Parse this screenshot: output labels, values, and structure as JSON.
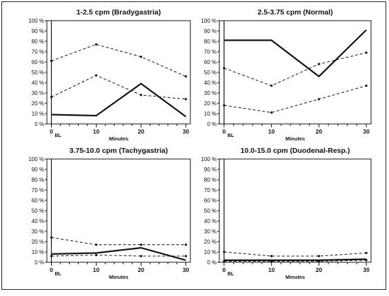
{
  "chart_data": [
    {
      "type": "line",
      "title": "1-2.5 cpm (Bradygastria)",
      "xlabel": "Minutes",
      "ylabel": "",
      "x": [
        0,
        10,
        20,
        30
      ],
      "x_tick_labels": [
        "0",
        "10",
        "20",
        "30"
      ],
      "x_tick_sub": "BL",
      "xlim": [
        -1,
        31
      ],
      "ylim": [
        0,
        100
      ],
      "y_ticks": [
        0,
        10,
        20,
        30,
        40,
        50,
        60,
        70,
        80,
        90,
        100
      ],
      "y_tick_labels": [
        "0 %",
        "10 %",
        "20 %",
        "30 %",
        "40 %",
        "50 %",
        "60 %",
        "70 %",
        "80 %",
        "90 %",
        "100 %"
      ],
      "grid": false,
      "series": [
        {
          "style": "solid",
          "values": [
            9,
            8,
            39,
            7
          ]
        },
        {
          "style": "dashed",
          "values": [
            61,
            77,
            65,
            46
          ]
        },
        {
          "style": "dashed",
          "values": [
            26,
            47,
            28,
            24
          ]
        }
      ]
    },
    {
      "type": "line",
      "title": "2.5-3.75 cpm (Normal)",
      "xlabel": "Minutes",
      "ylabel": "",
      "x": [
        0,
        10,
        20,
        30
      ],
      "x_tick_labels": [
        "0",
        "10",
        "20",
        "30"
      ],
      "x_tick_sub": "BL",
      "xlim": [
        -1,
        31
      ],
      "ylim": [
        0,
        100
      ],
      "y_ticks": [
        0,
        10,
        20,
        30,
        40,
        50,
        60,
        70,
        80,
        90,
        100
      ],
      "y_tick_labels": [
        "0 %",
        "10 %",
        "20 %",
        "30 %",
        "40 %",
        "50 %",
        "60 %",
        "70 %",
        "80 %",
        "90 %",
        "100 %"
      ],
      "grid": false,
      "series": [
        {
          "style": "solid",
          "values": [
            81,
            81,
            46,
            91
          ]
        },
        {
          "style": "dashed",
          "values": [
            54,
            37,
            58,
            69
          ]
        },
        {
          "style": "dashed",
          "values": [
            18,
            11,
            24,
            37
          ]
        }
      ]
    },
    {
      "type": "line",
      "title": "3.75-10.0 cpm (Tachygastria)",
      "xlabel": "Minutes",
      "ylabel": "",
      "x": [
        0,
        10,
        20,
        30
      ],
      "x_tick_labels": [
        "0",
        "10",
        "20",
        "30"
      ],
      "x_tick_sub": "BL",
      "xlim": [
        -1,
        31
      ],
      "ylim": [
        0,
        100
      ],
      "y_ticks": [
        0,
        10,
        20,
        30,
        40,
        50,
        60,
        70,
        80,
        90,
        100
      ],
      "y_tick_labels": [
        "0 %",
        "10 %",
        "20 %",
        "30 %",
        "40 %",
        "50 %",
        "60 %",
        "70 %",
        "80 %",
        "90 %",
        "100 %"
      ],
      "grid": false,
      "series": [
        {
          "style": "solid",
          "values": [
            8,
            9,
            14,
            2
          ]
        },
        {
          "style": "dashed",
          "values": [
            24,
            17,
            17,
            17
          ]
        },
        {
          "style": "dashed",
          "values": [
            6,
            7,
            6,
            6
          ]
        }
      ]
    },
    {
      "type": "line",
      "title": "10.0-15.0 cpm (Duodenal-Resp.)",
      "xlabel": "Minutes",
      "ylabel": "",
      "x": [
        0,
        10,
        20,
        30
      ],
      "x_tick_labels": [
        "0",
        "10",
        "20",
        "30"
      ],
      "x_tick_sub": "BL",
      "xlim": [
        -1,
        31
      ],
      "ylim": [
        0,
        100
      ],
      "y_ticks": [
        0,
        10,
        20,
        30,
        40,
        50,
        60,
        70,
        80,
        90,
        100
      ],
      "y_tick_labels": [
        "0 %",
        "10 %",
        "20 %",
        "30 %",
        "40 %",
        "50 %",
        "60 %",
        "70 %",
        "80 %",
        "90 %",
        "100 %"
      ],
      "grid": false,
      "series": [
        {
          "style": "solid",
          "values": [
            2,
            2,
            2,
            3
          ]
        },
        {
          "style": "dashed",
          "values": [
            10,
            6,
            6,
            9
          ]
        },
        {
          "style": "dashed",
          "values": [
            1,
            1,
            1,
            2
          ]
        }
      ]
    }
  ]
}
